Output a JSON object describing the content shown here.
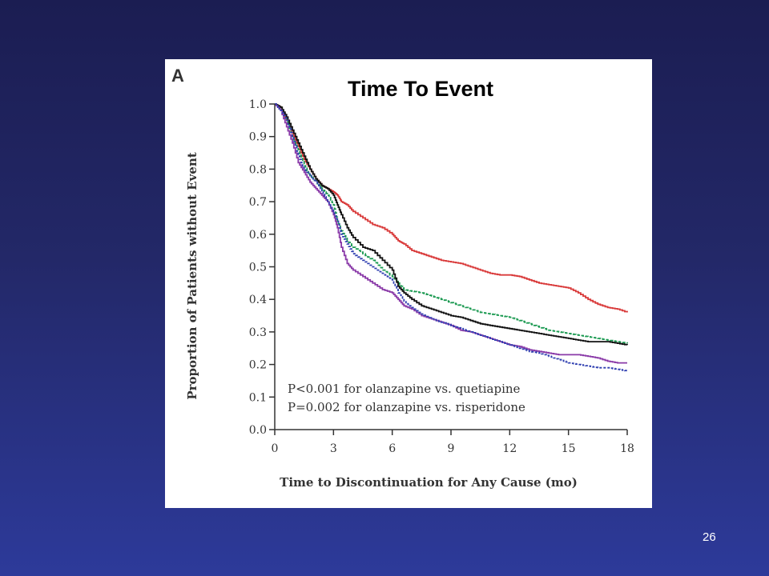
{
  "slide": {
    "number": "26"
  },
  "figure": {
    "panel_letter": "A",
    "annotations": [
      "P<0.001 for olanzapine vs. quetiapine",
      "P=0.002 for olanzapine vs. risperidone"
    ]
  },
  "chart_data": {
    "type": "line",
    "title": "Time To Event",
    "xlabel": "Time to Discontinuation for Any Cause (mo)",
    "ylabel": "Proportion of Patients without Event",
    "xlim": [
      0,
      18
    ],
    "ylim": [
      0.0,
      1.0
    ],
    "x_ticks": [
      "0",
      "3",
      "6",
      "9",
      "12",
      "15",
      "18"
    ],
    "y_ticks": [
      "0.0",
      "0.1",
      "0.2",
      "0.3",
      "0.4",
      "0.5",
      "0.6",
      "0.7",
      "0.8",
      "0.9",
      "1.0"
    ],
    "grid": false,
    "legend": "none",
    "series": [
      {
        "color": "#d93a3a",
        "dash": "solid",
        "points": [
          [
            0,
            1.0
          ],
          [
            0.3,
            0.99
          ],
          [
            0.6,
            0.95
          ],
          [
            0.9,
            0.91
          ],
          [
            1.2,
            0.87
          ],
          [
            1.5,
            0.83
          ],
          [
            1.8,
            0.8
          ],
          [
            2.1,
            0.77
          ],
          [
            2.4,
            0.75
          ],
          [
            2.7,
            0.74
          ],
          [
            3.0,
            0.73
          ],
          [
            3.2,
            0.72
          ],
          [
            3.4,
            0.7
          ],
          [
            3.7,
            0.69
          ],
          [
            4.0,
            0.67
          ],
          [
            4.5,
            0.65
          ],
          [
            5.0,
            0.63
          ],
          [
            5.5,
            0.62
          ],
          [
            6.0,
            0.6
          ],
          [
            6.3,
            0.58
          ],
          [
            6.6,
            0.57
          ],
          [
            7.0,
            0.55
          ],
          [
            7.5,
            0.54
          ],
          [
            8.0,
            0.53
          ],
          [
            8.5,
            0.52
          ],
          [
            9.0,
            0.515
          ],
          [
            9.5,
            0.51
          ],
          [
            10.0,
            0.5
          ],
          [
            10.5,
            0.49
          ],
          [
            11.0,
            0.48
          ],
          [
            11.5,
            0.475
          ],
          [
            12.0,
            0.475
          ],
          [
            12.5,
            0.47
          ],
          [
            13.0,
            0.46
          ],
          [
            13.5,
            0.45
          ],
          [
            14.0,
            0.445
          ],
          [
            14.5,
            0.44
          ],
          [
            15.0,
            0.435
          ],
          [
            15.5,
            0.42
          ],
          [
            16.0,
            0.4
          ],
          [
            16.5,
            0.385
          ],
          [
            17.0,
            0.375
          ],
          [
            17.5,
            0.37
          ],
          [
            18.0,
            0.36
          ]
        ]
      },
      {
        "color": "#1a9950",
        "dash": "4,2",
        "points": [
          [
            0,
            1.0
          ],
          [
            0.3,
            0.99
          ],
          [
            0.6,
            0.95
          ],
          [
            0.9,
            0.9
          ],
          [
            1.2,
            0.86
          ],
          [
            1.5,
            0.81
          ],
          [
            1.8,
            0.78
          ],
          [
            2.1,
            0.76
          ],
          [
            2.4,
            0.74
          ],
          [
            2.7,
            0.72
          ],
          [
            3.0,
            0.69
          ],
          [
            3.2,
            0.64
          ],
          [
            3.4,
            0.61
          ],
          [
            3.7,
            0.58
          ],
          [
            4.0,
            0.56
          ],
          [
            4.5,
            0.54
          ],
          [
            5.0,
            0.52
          ],
          [
            5.5,
            0.49
          ],
          [
            6.0,
            0.47
          ],
          [
            6.3,
            0.45
          ],
          [
            6.6,
            0.43
          ],
          [
            7.0,
            0.425
          ],
          [
            7.5,
            0.42
          ],
          [
            8.0,
            0.41
          ],
          [
            8.5,
            0.4
          ],
          [
            9.0,
            0.39
          ],
          [
            9.5,
            0.38
          ],
          [
            10.0,
            0.37
          ],
          [
            10.5,
            0.36
          ],
          [
            11.0,
            0.355
          ],
          [
            11.5,
            0.35
          ],
          [
            12.0,
            0.345
          ],
          [
            12.5,
            0.335
          ],
          [
            13.0,
            0.325
          ],
          [
            13.5,
            0.315
          ],
          [
            14.0,
            0.305
          ],
          [
            14.5,
            0.3
          ],
          [
            15.0,
            0.295
          ],
          [
            15.5,
            0.29
          ],
          [
            16.0,
            0.285
          ],
          [
            16.5,
            0.28
          ],
          [
            17.0,
            0.275
          ],
          [
            17.5,
            0.27
          ],
          [
            18.0,
            0.265
          ]
        ]
      },
      {
        "color": "#111111",
        "dash": "solid",
        "points": [
          [
            0,
            1.0
          ],
          [
            0.3,
            0.99
          ],
          [
            0.6,
            0.96
          ],
          [
            0.9,
            0.92
          ],
          [
            1.2,
            0.88
          ],
          [
            1.5,
            0.84
          ],
          [
            1.8,
            0.8
          ],
          [
            2.1,
            0.77
          ],
          [
            2.4,
            0.75
          ],
          [
            2.7,
            0.74
          ],
          [
            3.0,
            0.72
          ],
          [
            3.2,
            0.69
          ],
          [
            3.4,
            0.66
          ],
          [
            3.7,
            0.62
          ],
          [
            4.0,
            0.59
          ],
          [
            4.5,
            0.56
          ],
          [
            5.0,
            0.55
          ],
          [
            5.5,
            0.52
          ],
          [
            6.0,
            0.49
          ],
          [
            6.3,
            0.44
          ],
          [
            6.6,
            0.42
          ],
          [
            7.0,
            0.4
          ],
          [
            7.5,
            0.38
          ],
          [
            8.0,
            0.37
          ],
          [
            8.5,
            0.36
          ],
          [
            9.0,
            0.35
          ],
          [
            9.5,
            0.345
          ],
          [
            10.0,
            0.335
          ],
          [
            10.5,
            0.325
          ],
          [
            11.0,
            0.32
          ],
          [
            11.5,
            0.315
          ],
          [
            12.0,
            0.31
          ],
          [
            12.5,
            0.305
          ],
          [
            13.0,
            0.3
          ],
          [
            13.5,
            0.295
          ],
          [
            14.0,
            0.29
          ],
          [
            14.5,
            0.285
          ],
          [
            15.0,
            0.28
          ],
          [
            15.5,
            0.275
          ],
          [
            16.0,
            0.27
          ],
          [
            16.5,
            0.27
          ],
          [
            17.0,
            0.27
          ],
          [
            17.5,
            0.265
          ],
          [
            18.0,
            0.26
          ]
        ]
      },
      {
        "color": "#8a3aa8",
        "dash": "solid",
        "points": [
          [
            0,
            1.0
          ],
          [
            0.3,
            0.98
          ],
          [
            0.6,
            0.93
          ],
          [
            0.9,
            0.88
          ],
          [
            1.2,
            0.82
          ],
          [
            1.5,
            0.79
          ],
          [
            1.8,
            0.76
          ],
          [
            2.1,
            0.74
          ],
          [
            2.4,
            0.72
          ],
          [
            2.7,
            0.7
          ],
          [
            3.0,
            0.66
          ],
          [
            3.2,
            0.62
          ],
          [
            3.4,
            0.56
          ],
          [
            3.7,
            0.51
          ],
          [
            4.0,
            0.49
          ],
          [
            4.5,
            0.47
          ],
          [
            5.0,
            0.45
          ],
          [
            5.5,
            0.43
          ],
          [
            6.0,
            0.42
          ],
          [
            6.3,
            0.4
          ],
          [
            6.6,
            0.38
          ],
          [
            7.0,
            0.37
          ],
          [
            7.5,
            0.35
          ],
          [
            8.0,
            0.34
          ],
          [
            8.5,
            0.33
          ],
          [
            9.0,
            0.32
          ],
          [
            9.5,
            0.305
          ],
          [
            10.0,
            0.3
          ],
          [
            10.5,
            0.29
          ],
          [
            11.0,
            0.28
          ],
          [
            11.5,
            0.27
          ],
          [
            12.0,
            0.26
          ],
          [
            12.5,
            0.255
          ],
          [
            13.0,
            0.245
          ],
          [
            13.5,
            0.24
          ],
          [
            14.0,
            0.235
          ],
          [
            14.5,
            0.23
          ],
          [
            15.0,
            0.23
          ],
          [
            15.5,
            0.23
          ],
          [
            16.0,
            0.225
          ],
          [
            16.5,
            0.22
          ],
          [
            17.0,
            0.21
          ],
          [
            17.5,
            0.205
          ],
          [
            18.0,
            0.205
          ]
        ]
      },
      {
        "color": "#2e3eb0",
        "dash": "3,2",
        "points": [
          [
            0,
            1.0
          ],
          [
            0.3,
            0.98
          ],
          [
            0.6,
            0.95
          ],
          [
            0.9,
            0.9
          ],
          [
            1.2,
            0.84
          ],
          [
            1.5,
            0.8
          ],
          [
            1.8,
            0.78
          ],
          [
            2.1,
            0.76
          ],
          [
            2.4,
            0.73
          ],
          [
            2.7,
            0.7
          ],
          [
            3.0,
            0.67
          ],
          [
            3.2,
            0.64
          ],
          [
            3.4,
            0.6
          ],
          [
            3.7,
            0.57
          ],
          [
            4.0,
            0.54
          ],
          [
            4.5,
            0.52
          ],
          [
            5.0,
            0.5
          ],
          [
            5.5,
            0.48
          ],
          [
            6.0,
            0.46
          ],
          [
            6.3,
            0.42
          ],
          [
            6.6,
            0.395
          ],
          [
            7.0,
            0.375
          ],
          [
            7.5,
            0.355
          ],
          [
            8.0,
            0.34
          ],
          [
            8.5,
            0.33
          ],
          [
            9.0,
            0.32
          ],
          [
            9.5,
            0.31
          ],
          [
            10.0,
            0.3
          ],
          [
            10.5,
            0.29
          ],
          [
            11.0,
            0.28
          ],
          [
            11.5,
            0.27
          ],
          [
            12.0,
            0.26
          ],
          [
            12.5,
            0.25
          ],
          [
            13.0,
            0.24
          ],
          [
            13.5,
            0.235
          ],
          [
            14.0,
            0.225
          ],
          [
            14.5,
            0.215
          ],
          [
            15.0,
            0.205
          ],
          [
            15.5,
            0.2
          ],
          [
            16.0,
            0.195
          ],
          [
            16.5,
            0.19
          ],
          [
            17.0,
            0.19
          ],
          [
            17.5,
            0.185
          ],
          [
            18.0,
            0.18
          ]
        ]
      }
    ]
  }
}
